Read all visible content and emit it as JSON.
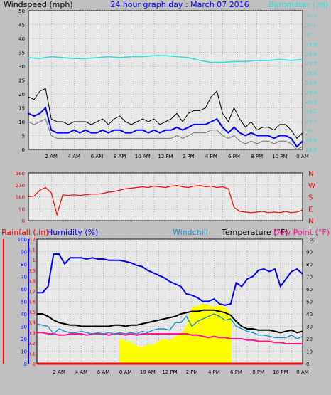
{
  "header": {
    "left_label": "Windspeed (mph)",
    "title": "24 hour graph day : March 07 2016",
    "right_label": "Barometer (.in)"
  },
  "bottom_header": {
    "rainfall_label": "Rainfall (.in)",
    "humidity_label": "Humidity (%)",
    "windchill_label": "Windchill",
    "temperature_label": "Temperature (°F)",
    "dewpoint_label": "Dew Point (°F)"
  },
  "sun_label": "Sun",
  "colors": {
    "background": "#c0c0c0",
    "plot_area": "#e8e8e8",
    "wind_gust": "#000000",
    "wind_avg": "#0000ff",
    "wind_low": "#707070",
    "barometer": "#33dddd",
    "direction": "#ff0000",
    "humidity": "#0000ff",
    "windchill": "#1a8fc8",
    "temperature": "#000000",
    "dewpoint": "#ff1493",
    "sun": "#ffff00",
    "rainfall": "#ff0000"
  },
  "chart_data": [
    {
      "id": "wind_baro",
      "type": "line",
      "x_ticks": [
        "2 AM",
        "4 AM",
        "6 AM",
        "8 AM",
        "10 AM",
        "12 PM",
        "2 PM",
        "4 PM",
        "6 PM",
        "8 PM",
        "10 PM",
        "0 AM"
      ],
      "y_left": {
        "label": "Windspeed (mph)",
        "ticks": [
          0,
          5,
          10,
          15,
          20,
          25,
          30,
          35,
          40,
          45,
          50
        ],
        "range": [
          0,
          50
        ]
      },
      "y_right": {
        "label": "Barometer (.in)",
        "ticks": [
          "28.8",
          "28.9",
          "29",
          "29.1",
          "29.2",
          "29.3",
          "29.4",
          "29.5",
          "29.6",
          "29.7",
          "29.8",
          "29.9",
          "30",
          "30.1",
          "30.2"
        ],
        "range": [
          28.8,
          30.25
        ]
      },
      "grid": true,
      "series": [
        {
          "name": "gust",
          "axis": "left",
          "x": [
            0,
            0.5,
            1,
            1.5,
            2,
            2.5,
            3,
            3.5,
            4,
            4.5,
            5,
            5.5,
            6,
            6.5,
            7,
            7.5,
            8,
            8.5,
            9,
            9.5,
            10,
            10.5,
            11,
            11.5,
            12,
            12.5,
            13,
            13.5,
            14,
            14.5,
            15,
            15.5,
            16,
            16.5,
            17,
            17.5,
            18,
            18.5,
            19,
            19.5,
            20,
            20.5,
            21,
            21.5,
            22,
            22.5,
            23,
            23.5,
            24
          ],
          "y": [
            19,
            18,
            21,
            22,
            11,
            10,
            10,
            9,
            10,
            10,
            10,
            9,
            10,
            11,
            9,
            11,
            12,
            10,
            9,
            10,
            11,
            10,
            11,
            9,
            10,
            11,
            13,
            10,
            13,
            14,
            14,
            15,
            19,
            21,
            13,
            10,
            15,
            11,
            8,
            10,
            7,
            8,
            8,
            7,
            9,
            9,
            7,
            4,
            6
          ]
        },
        {
          "name": "average",
          "axis": "left",
          "x": [
            0,
            0.5,
            1,
            1.5,
            2,
            2.5,
            3,
            3.5,
            4,
            4.5,
            5,
            5.5,
            6,
            6.5,
            7,
            7.5,
            8,
            8.5,
            9,
            9.5,
            10,
            10.5,
            11,
            11.5,
            12,
            12.5,
            13,
            13.5,
            14,
            14.5,
            15,
            15.5,
            16,
            16.5,
            17,
            17.5,
            18,
            18.5,
            19,
            19.5,
            20,
            20.5,
            21,
            21.5,
            22,
            22.5,
            23,
            23.5,
            24
          ],
          "y": [
            13,
            12,
            13,
            15,
            7,
            6,
            6,
            6,
            7,
            6,
            7,
            6,
            6,
            7,
            6,
            7,
            7,
            6,
            6,
            7,
            7,
            6,
            7,
            6,
            7,
            7,
            8,
            7,
            8,
            9,
            9,
            9,
            10,
            11,
            8,
            6,
            8,
            6,
            5,
            6,
            5,
            5,
            5,
            4,
            5,
            5,
            4,
            1,
            3
          ]
        },
        {
          "name": "low",
          "axis": "left",
          "x": [
            0,
            0.5,
            1,
            1.5,
            2,
            2.5,
            3,
            3.5,
            4,
            4.5,
            5,
            5.5,
            6,
            6.5,
            7,
            7.5,
            8,
            8.5,
            9,
            9.5,
            10,
            10.5,
            11,
            11.5,
            12,
            12.5,
            13,
            13.5,
            14,
            14.5,
            15,
            15.5,
            16,
            16.5,
            17,
            17.5,
            18,
            18.5,
            19,
            19.5,
            20,
            20.5,
            21,
            21.5,
            22,
            22.5,
            23,
            23.5,
            24
          ],
          "y": [
            10,
            9,
            10,
            11,
            5,
            4,
            4,
            4,
            4,
            4,
            4,
            4,
            4,
            4,
            4,
            4,
            4,
            4,
            4,
            4,
            4,
            4,
            4,
            4,
            4,
            4,
            5,
            4,
            5,
            6,
            6,
            6,
            7,
            7,
            5,
            4,
            5,
            3,
            2,
            3,
            2,
            3,
            3,
            2,
            3,
            3,
            2,
            0,
            1
          ]
        },
        {
          "name": "barometer",
          "axis": "right",
          "x": [
            0,
            1,
            2,
            3,
            4,
            5,
            6,
            7,
            8,
            9,
            10,
            11,
            12,
            13,
            14,
            15,
            16,
            17,
            18,
            19,
            20,
            21,
            22,
            23,
            24
          ],
          "y": [
            29.76,
            29.75,
            29.77,
            29.76,
            29.75,
            29.75,
            29.76,
            29.77,
            29.76,
            29.77,
            29.77,
            29.78,
            29.78,
            29.77,
            29.76,
            29.73,
            29.71,
            29.71,
            29.72,
            29.72,
            29.73,
            29.73,
            29.74,
            29.73,
            29.74
          ]
        }
      ]
    },
    {
      "id": "direction",
      "type": "line",
      "x_ticks": [],
      "y_left": {
        "ticks": [
          0,
          90,
          180,
          270,
          360
        ],
        "range": [
          0,
          360
        ]
      },
      "y_right": {
        "ticks": [
          "N",
          "W",
          "S",
          "E",
          "N"
        ]
      },
      "grid": true,
      "series": [
        {
          "name": "wind direction",
          "x": [
            0,
            0.5,
            1,
            1.5,
            2,
            2.5,
            3,
            3.5,
            4,
            4.5,
            5,
            5.5,
            6,
            6.5,
            7,
            7.5,
            8,
            8.5,
            9,
            9.5,
            10,
            10.5,
            11,
            11.5,
            12,
            12.5,
            13,
            13.5,
            14,
            14.5,
            15,
            15.5,
            16,
            16.5,
            17,
            17.5,
            18,
            18.5,
            19,
            19.5,
            20,
            20.5,
            21,
            21.5,
            22,
            22.5,
            23,
            23.5,
            24
          ],
          "y": [
            180,
            185,
            230,
            250,
            210,
            45,
            195,
            190,
            195,
            190,
            195,
            200,
            200,
            205,
            215,
            220,
            230,
            240,
            245,
            250,
            255,
            250,
            260,
            255,
            250,
            260,
            265,
            255,
            250,
            260,
            265,
            255,
            260,
            250,
            255,
            240,
            100,
            70,
            65,
            60,
            65,
            70,
            60,
            65,
            60,
            70,
            60,
            65,
            80
          ]
        }
      ]
    },
    {
      "id": "temp_hum",
      "type": "line",
      "x_ticks": [
        "2 AM",
        "4 AM",
        "6 AM",
        "8 AM",
        "10 AM",
        "12 PM",
        "2 PM",
        "4 PM",
        "6 PM",
        "8 PM",
        "10 PM",
        "0 AM"
      ],
      "y_rain": {
        "label": "Rainfall (.in)",
        "ticks": [
          0,
          0.1,
          0.2,
          0.3,
          0.4,
          0.5,
          0.6,
          0.7,
          0.8,
          0.9,
          1,
          1.1,
          1.2
        ],
        "range": [
          0,
          1.2
        ]
      },
      "y_humidity": {
        "label": "Humidity (%)",
        "ticks": [
          0,
          10,
          20,
          30,
          40,
          50,
          60,
          70,
          80,
          90,
          100
        ],
        "range": [
          0,
          100
        ]
      },
      "y_temp": {
        "label": "Temperature (°F)",
        "ticks": [
          0,
          10,
          20,
          30,
          40,
          50,
          60,
          70,
          80,
          90,
          100
        ],
        "range": [
          0,
          100
        ]
      },
      "grid": true,
      "series": [
        {
          "name": "Humidity (%)",
          "axis": "humidity",
          "x": [
            0,
            0.5,
            1,
            1.5,
            2,
            2.5,
            3,
            3.5,
            4,
            4.5,
            5,
            5.5,
            6,
            6.5,
            7,
            7.5,
            8,
            8.5,
            9,
            9.5,
            10,
            10.5,
            11,
            11.5,
            12,
            12.5,
            13,
            13.5,
            14,
            14.5,
            15,
            15.5,
            16,
            16.5,
            17,
            17.5,
            18,
            18.5,
            19,
            19.5,
            20,
            20.5,
            21,
            21.5,
            22,
            22.5,
            23,
            23.5,
            24
          ],
          "y": [
            57,
            57,
            62,
            88,
            88,
            80,
            85,
            85,
            85,
            84,
            85,
            84,
            84,
            83,
            83,
            83,
            82,
            81,
            79,
            78,
            75,
            73,
            71,
            69,
            66,
            64,
            62,
            56,
            55,
            53,
            50,
            50,
            52,
            48,
            47,
            48,
            65,
            62,
            68,
            70,
            75,
            76,
            74,
            76,
            62,
            68,
            74,
            76,
            72
          ]
        },
        {
          "name": "Temperature (°F)",
          "axis": "temp",
          "x": [
            0,
            0.5,
            1,
            1.5,
            2,
            2.5,
            3,
            3.5,
            4,
            4.5,
            5,
            5.5,
            6,
            6.5,
            7,
            7.5,
            8,
            8.5,
            9,
            9.5,
            10,
            10.5,
            11,
            11.5,
            12,
            12.5,
            13,
            13.5,
            14,
            14.5,
            15,
            15.5,
            16,
            16.5,
            17,
            17.5,
            18,
            18.5,
            19,
            19.5,
            20,
            20.5,
            21,
            21.5,
            22,
            22.5,
            23,
            23.5,
            24
          ],
          "y": [
            40,
            40,
            38,
            35,
            33,
            32,
            31,
            31,
            30,
            30,
            30,
            30,
            30,
            30,
            31,
            31,
            30,
            31,
            31,
            32,
            33,
            34,
            35,
            36,
            37,
            38,
            40,
            41,
            42,
            42,
            43,
            43,
            43,
            42,
            41,
            39,
            34,
            30,
            28,
            28,
            27,
            27,
            27,
            26,
            25,
            26,
            27,
            25,
            26
          ]
        },
        {
          "name": "Windchill",
          "axis": "temp",
          "x": [
            0,
            0.5,
            1,
            1.5,
            2,
            2.5,
            3,
            3.5,
            4,
            4.5,
            5,
            5.5,
            6,
            6.5,
            7,
            7.5,
            8,
            8.5,
            9,
            9.5,
            10,
            10.5,
            11,
            11.5,
            12,
            12.5,
            13,
            13.5,
            14,
            14.5,
            15,
            15.5,
            16,
            16.5,
            17,
            17.5,
            18,
            18.5,
            19,
            19.5,
            20,
            20.5,
            21,
            21.5,
            22,
            22.5,
            23,
            23.5,
            24
          ],
          "y": [
            32,
            31,
            30,
            24,
            28,
            26,
            25,
            25,
            26,
            25,
            24,
            25,
            24,
            25,
            24,
            25,
            24,
            25,
            24,
            26,
            25,
            27,
            28,
            28,
            27,
            33,
            33,
            38,
            30,
            34,
            36,
            38,
            40,
            38,
            35,
            36,
            30,
            28,
            26,
            25,
            23,
            23,
            22,
            21,
            21,
            21,
            23,
            20,
            22
          ]
        },
        {
          "name": "Dew Point (°F)",
          "axis": "temp",
          "x": [
            0,
            0.5,
            1,
            1.5,
            2,
            2.5,
            3,
            3.5,
            4,
            4.5,
            5,
            5.5,
            6,
            6.5,
            7,
            7.5,
            8,
            8.5,
            9,
            9.5,
            10,
            10.5,
            11,
            11.5,
            12,
            12.5,
            13,
            13.5,
            14,
            14.5,
            15,
            15.5,
            16,
            16.5,
            17,
            17.5,
            18,
            18.5,
            19,
            19.5,
            20,
            20.5,
            21,
            21.5,
            22,
            22.5,
            23,
            23.5,
            24
          ],
          "y": [
            25,
            25,
            24,
            24,
            23,
            23,
            24,
            24,
            24,
            23,
            24,
            24,
            24,
            23,
            24,
            24,
            23,
            24,
            23,
            24,
            24,
            24,
            24,
            24,
            24,
            24,
            24,
            24,
            23,
            23,
            22,
            21,
            22,
            21,
            21,
            20,
            20,
            20,
            19,
            19,
            18,
            18,
            18,
            17,
            17,
            16,
            16,
            16,
            16
          ]
        },
        {
          "name": "Sun",
          "axis": "temp",
          "x": [
            7.5,
            8,
            8.5,
            9,
            9.5,
            10,
            10.5,
            11,
            11.5,
            12,
            12.5,
            13,
            13.5,
            14,
            14.5,
            15,
            15.5,
            16,
            16.5,
            17,
            17.5
          ],
          "y": [
            20,
            18,
            16,
            14,
            13,
            15,
            15,
            18,
            20,
            18,
            22,
            23,
            30,
            45,
            46,
            48,
            47,
            45,
            47,
            45,
            40
          ]
        },
        {
          "name": "Rainfall (.in)",
          "axis": "rain",
          "x": [
            0,
            24
          ],
          "y": [
            0,
            0
          ]
        }
      ]
    }
  ]
}
